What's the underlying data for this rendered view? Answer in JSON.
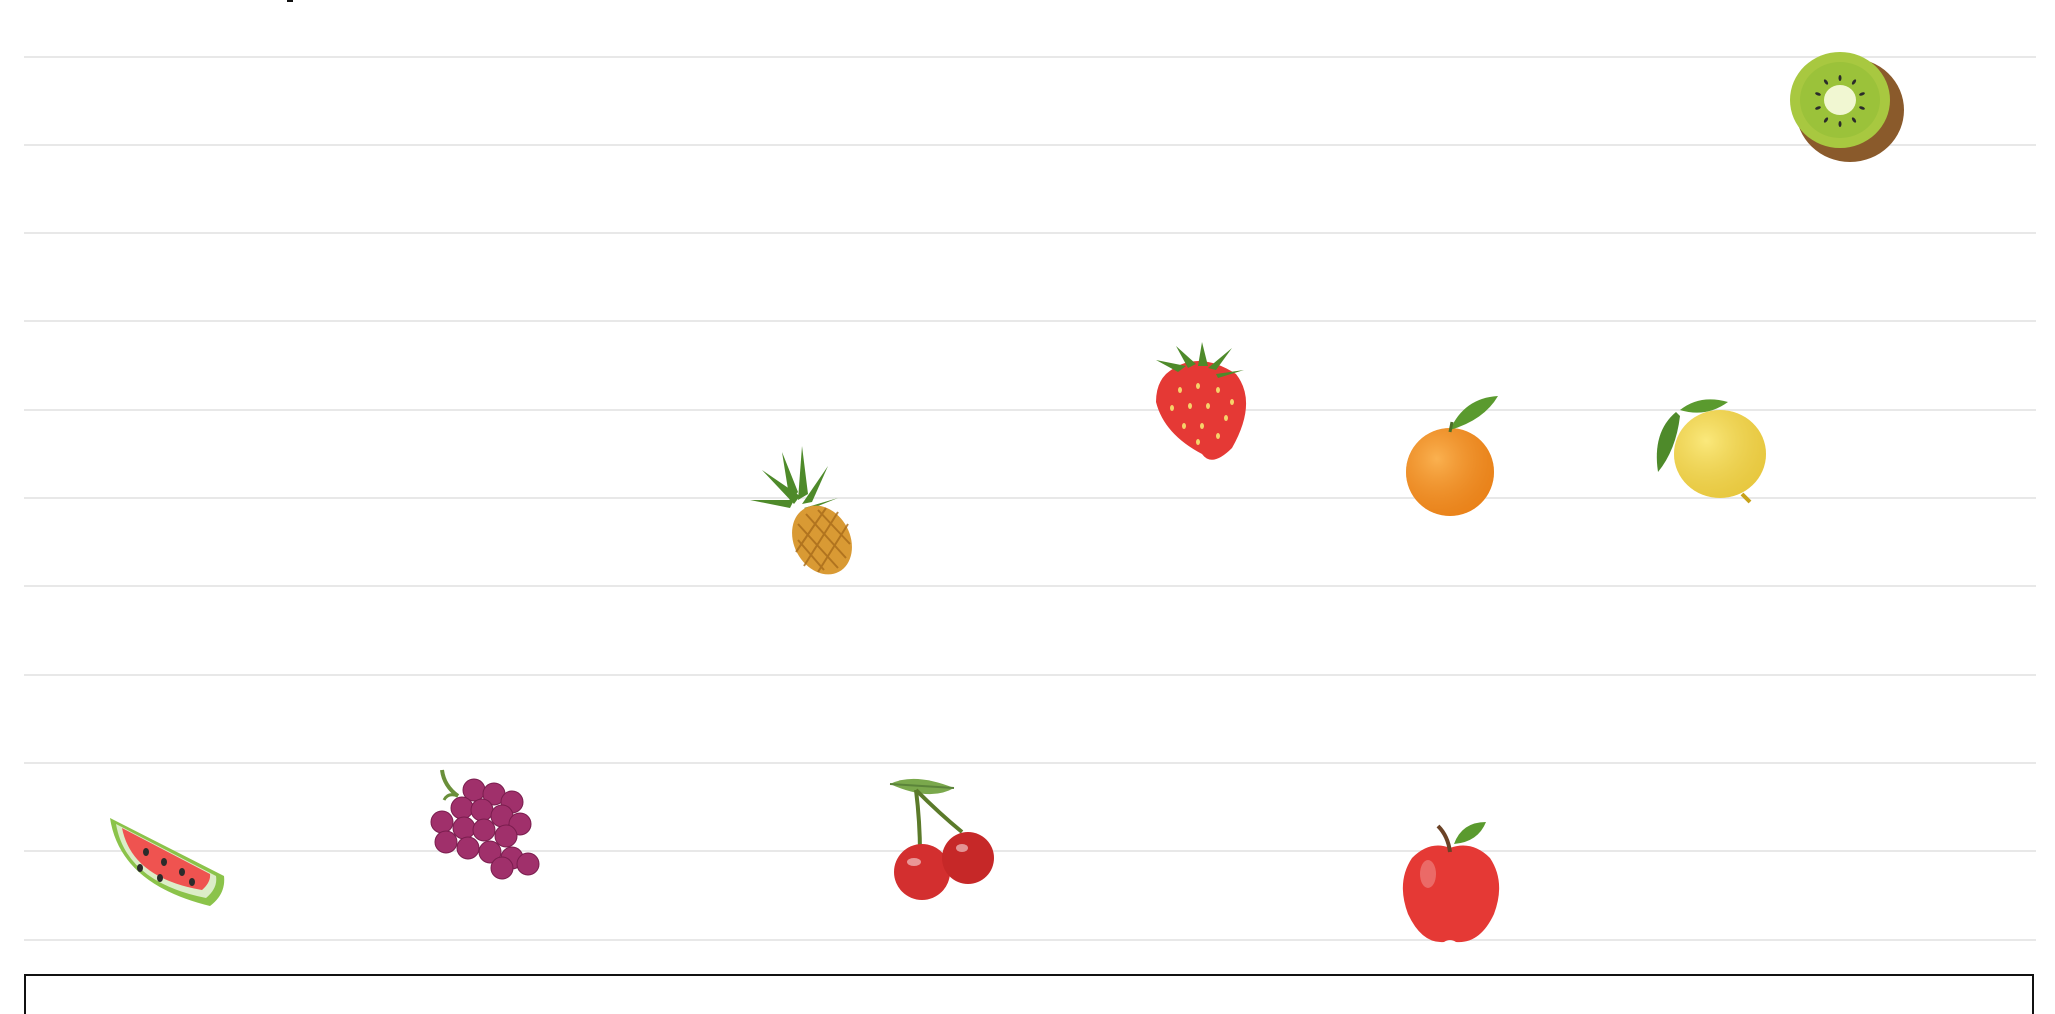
{
  "board": {
    "grid_rows": 10,
    "fruits": [
      {
        "name": "watermelon-icon"
      },
      {
        "name": "grapes-icon"
      },
      {
        "name": "pineapple-icon"
      },
      {
        "name": "cherries-icon"
      },
      {
        "name": "strawberry-icon"
      },
      {
        "name": "tangerine-icon"
      },
      {
        "name": "red-apple-icon"
      },
      {
        "name": "lemon-icon"
      },
      {
        "name": "kiwi-icon"
      }
    ]
  },
  "colors": {
    "grid": "#e8e8e8",
    "frame": "#111111"
  }
}
